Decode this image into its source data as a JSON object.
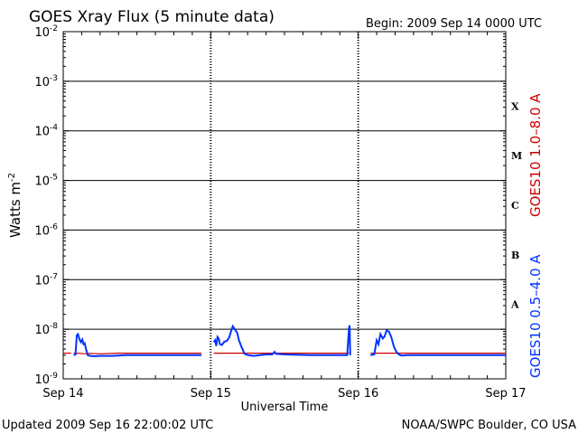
{
  "chart_data": {
    "type": "line",
    "title": "GOES Xray Flux (5 minute data)",
    "begin_label": "Begin:  2009 Sep 14 0000 UTC",
    "xlabel": "Universal Time",
    "ylabel_base": "Watts m",
    "ylabel_exp": "-2",
    "xlim": [
      0,
      72
    ],
    "ylim_exp": [
      -9,
      -2
    ],
    "y_scale": "log",
    "x_ticks": [
      {
        "x": 0,
        "label": "Sep 14"
      },
      {
        "x": 24,
        "label": "Sep 15"
      },
      {
        "x": 48,
        "label": "Sep 16"
      },
      {
        "x": 72,
        "label": "Sep 17"
      }
    ],
    "y_ticks": [
      {
        "exp": -9,
        "label": "10",
        "sup": "-9"
      },
      {
        "exp": -8,
        "label": "10",
        "sup": "-8"
      },
      {
        "exp": -7,
        "label": "10",
        "sup": "-7"
      },
      {
        "exp": -6,
        "label": "10",
        "sup": "-6"
      },
      {
        "exp": -5,
        "label": "10",
        "sup": "-5"
      },
      {
        "exp": -4,
        "label": "10",
        "sup": "-4"
      },
      {
        "exp": -3,
        "label": "10",
        "sup": "-3"
      },
      {
        "exp": -2,
        "label": "10",
        "sup": "-2"
      }
    ],
    "flare_classes": [
      {
        "label": "X",
        "exp": -3.5
      },
      {
        "label": "M",
        "exp": -4.5
      },
      {
        "label": "C",
        "exp": -5.5
      },
      {
        "label": "B",
        "exp": -6.5
      },
      {
        "label": "A",
        "exp": -7.5
      }
    ],
    "grid": "solid horizontal at each decade from 1e-8 to 1e-3; dotted vertical at day boundaries",
    "series": [
      {
        "name": "GOES10 1.0–8.0 A",
        "color": "#cc0000",
        "points": [
          [
            0,
            3.3e-09
          ],
          [
            1.3,
            3.3e-09
          ],
          [
            1.7,
            3.3e-09
          ],
          [
            2.1,
            3.3e-09
          ],
          [
            3.8,
            3.2e-09
          ],
          [
            4.2,
            3.25e-09
          ],
          [
            6,
            3.2e-09
          ],
          [
            9,
            3.3e-09
          ],
          [
            12,
            3.3e-09
          ],
          [
            18,
            3.3e-09
          ],
          [
            22.5,
            3.3e-09
          ],
          [
            24.5,
            3.3e-09
          ],
          [
            27,
            3.3e-09
          ],
          [
            31,
            3.3e-09
          ],
          [
            36,
            3.3e-09
          ],
          [
            42,
            3.3e-09
          ],
          [
            46.5,
            3.3e-09
          ],
          [
            50,
            3.3e-09
          ],
          [
            54,
            3.3e-09
          ],
          [
            60,
            3.3e-09
          ],
          [
            66,
            3.3e-09
          ],
          [
            70,
            3.3e-09
          ],
          [
            72,
            3.3e-09
          ]
        ],
        "segments": [
          [
            0,
            1.3
          ],
          [
            1.7,
            22.5
          ],
          [
            24.5,
            46.5
          ],
          [
            50,
            72
          ]
        ]
      },
      {
        "name": "GOES10 0.5–4.0 A",
        "color": "#0033ff",
        "segments": [
          [
            [
              1.7,
              3e-09
            ],
            [
              2.0,
              3.1e-09
            ],
            [
              2.2,
              7.5e-09
            ],
            [
              2.4,
              8e-09
            ],
            [
              2.7,
              6e-09
            ],
            [
              2.9,
              5.5e-09
            ],
            [
              3.1,
              6.2e-09
            ],
            [
              3.3,
              5e-09
            ],
            [
              3.5,
              5.2e-09
            ],
            [
              3.7,
              4e-09
            ],
            [
              4.0,
              3e-09
            ],
            [
              4.4,
              2.9e-09
            ],
            [
              5,
              2.85e-09
            ],
            [
              6,
              2.9e-09
            ],
            [
              8,
              2.9e-09
            ],
            [
              10,
              3e-09
            ],
            [
              12,
              3e-09
            ],
            [
              16,
              3e-09
            ],
            [
              20,
              3e-09
            ],
            [
              22.5,
              3e-09
            ]
          ],
          [
            [
              24.5,
              5.5e-09
            ],
            [
              24.7,
              6e-09
            ],
            [
              24.9,
              4.6e-09
            ],
            [
              25.1,
              7e-09
            ],
            [
              25.3,
              6.5e-09
            ],
            [
              25.5,
              5e-09
            ],
            [
              25.8,
              4.8e-09
            ],
            [
              26.2,
              5.6e-09
            ],
            [
              26.6,
              5.8e-09
            ],
            [
              27.0,
              6.8e-09
            ],
            [
              27.4,
              1e-08
            ],
            [
              27.6,
              1.15e-08
            ],
            [
              27.9,
              1e-08
            ],
            [
              28.3,
              8.5e-09
            ],
            [
              28.6,
              6e-09
            ],
            [
              29.0,
              4.4e-09
            ],
            [
              29.5,
              3.2e-09
            ],
            [
              30,
              3e-09
            ],
            [
              31,
              2.9e-09
            ],
            [
              32,
              3e-09
            ],
            [
              33,
              3.1e-09
            ],
            [
              34,
              3.1e-09
            ],
            [
              34.4,
              3.5e-09
            ],
            [
              34.6,
              3.2e-09
            ],
            [
              36,
              3.1e-09
            ],
            [
              40,
              3e-09
            ],
            [
              44,
              3e-09
            ],
            [
              46.2,
              3e-09
            ],
            [
              46.5,
              1.08e-08
            ],
            [
              46.6,
              1.2e-08
            ],
            [
              46.7,
              3e-09
            ]
          ],
          [
            [
              50.0,
              3e-09
            ],
            [
              50.6,
              3.1e-09
            ],
            [
              51.0,
              6e-09
            ],
            [
              51.3,
              5e-09
            ],
            [
              51.6,
              8e-09
            ],
            [
              52.0,
              6.5e-09
            ],
            [
              52.3,
              7.2e-09
            ],
            [
              52.6,
              9.5e-09
            ],
            [
              53.0,
              9e-09
            ],
            [
              53.4,
              6.8e-09
            ],
            [
              53.8,
              4.5e-09
            ],
            [
              54.2,
              3.5e-09
            ],
            [
              54.6,
              3.1e-09
            ],
            [
              55.0,
              2.95e-09
            ],
            [
              56,
              3e-09
            ],
            [
              58,
              3e-09
            ],
            [
              60,
              3e-09
            ],
            [
              64,
              3e-09
            ],
            [
              68,
              3e-09
            ],
            [
              72,
              3e-09
            ]
          ]
        ]
      }
    ]
  },
  "footer": {
    "updated": "Updated 2009 Sep 16 22:00:02 UTC",
    "source": "NOAA/SWPC Boulder, CO USA"
  }
}
